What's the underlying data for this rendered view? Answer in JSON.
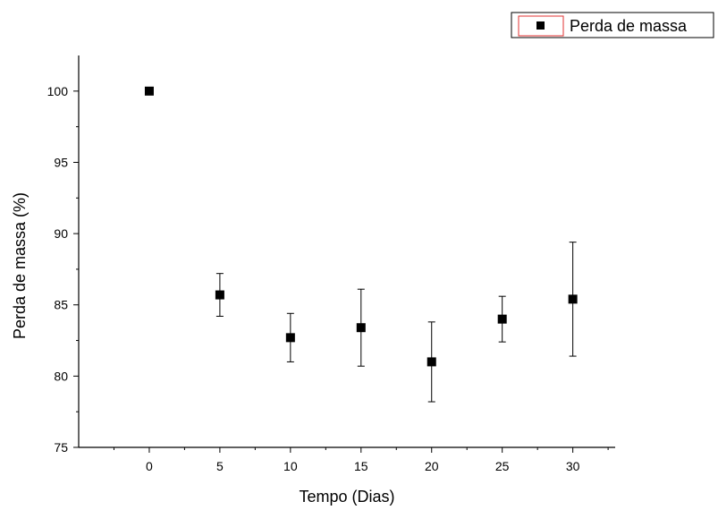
{
  "chart_data": {
    "type": "scatter",
    "xlabel": "Tempo (Dias)",
    "ylabel": "Perda de massa (%)",
    "xlim": [
      -5,
      33
    ],
    "ylim": [
      75,
      102.5
    ],
    "xticks": [
      0,
      5,
      10,
      15,
      20,
      25,
      30
    ],
    "yticks": [
      75,
      80,
      85,
      90,
      95,
      100
    ],
    "legend_position": "top-right",
    "grid": false,
    "series": [
      {
        "name": "Perda de massa",
        "color": "#000000",
        "marker": "square",
        "points": [
          {
            "x": 0,
            "y": 100.0,
            "err": 0
          },
          {
            "x": 5,
            "y": 85.7,
            "err": 1.5
          },
          {
            "x": 10,
            "y": 82.7,
            "err": 1.7
          },
          {
            "x": 15,
            "y": 83.4,
            "err": 2.7
          },
          {
            "x": 20,
            "y": 81.0,
            "err": 2.8
          },
          {
            "x": 25,
            "y": 84.0,
            "err": 1.6
          },
          {
            "x": 30,
            "y": 85.4,
            "err": 4.0
          }
        ]
      }
    ]
  },
  "colors": {
    "legend_border": "#e03030"
  }
}
